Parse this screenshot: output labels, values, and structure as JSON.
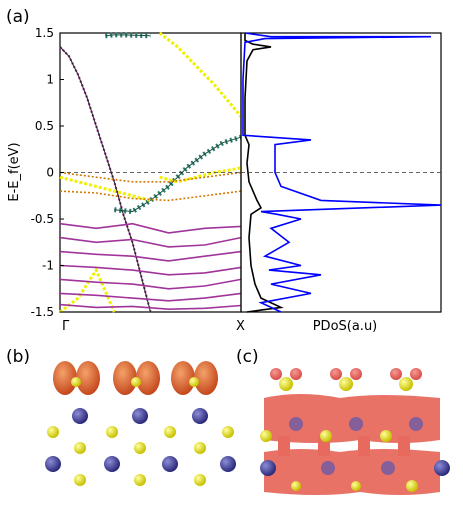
{
  "panel_labels": {
    "a": "(a)",
    "b": "(b)",
    "c": "(c)"
  },
  "chart_data": [
    {
      "type": "line",
      "panel": "(a) band structure",
      "ylabel": "E-E_f(eV)",
      "ylim": [
        -1.5,
        1.5
      ],
      "yticks": [
        "1.5",
        "1",
        "0.5",
        "0",
        "-0.5",
        "-1",
        "-1.5"
      ],
      "xticks": [
        "Γ",
        "X"
      ],
      "fermi_level_line": 0,
      "series": [
        {
          "style": "purple-black",
          "x": [
            0,
            0.05,
            0.1,
            0.15,
            0.2,
            0.25,
            0.3,
            0.35,
            0.4,
            0.5
          ],
          "y": [
            1.35,
            1.25,
            1.05,
            0.8,
            0.5,
            0.2,
            -0.1,
            -0.45,
            -0.75,
            -1.5
          ]
        },
        {
          "style": "teal-green",
          "x": [
            0.3,
            0.4,
            0.5,
            0.6,
            0.7,
            0.8,
            0.9,
            1.0
          ],
          "y": [
            -0.4,
            -0.42,
            -0.3,
            -0.15,
            0.05,
            0.2,
            0.32,
            0.38
          ]
        },
        {
          "style": "teal-green",
          "x": [
            0.25,
            0.3,
            0.35,
            0.5
          ],
          "y": [
            1.47,
            1.48,
            1.48,
            1.47
          ]
        },
        {
          "style": "yellow",
          "x": [
            0.55,
            0.65,
            0.75,
            0.85,
            0.95,
            1.0
          ],
          "y": [
            1.5,
            1.35,
            1.15,
            0.95,
            0.72,
            0.6
          ]
        },
        {
          "style": "yellow",
          "x": [
            0,
            0.1,
            0.2,
            0.3,
            0.4,
            0.5
          ],
          "y": [
            -0.05,
            -0.1,
            -0.15,
            -0.2,
            -0.25,
            -0.3
          ]
        },
        {
          "style": "yellow",
          "x": [
            0.55,
            0.65,
            0.75,
            0.85,
            0.95,
            1.0
          ],
          "y": [
            -0.05,
            -0.1,
            -0.05,
            0.0,
            0.03,
            0.05
          ]
        },
        {
          "style": "yellow",
          "x": [
            0.0,
            0.1,
            0.2,
            0.3
          ],
          "y": [
            -1.5,
            -1.35,
            -1.05,
            -1.5
          ]
        },
        {
          "style": "orange",
          "x": [
            0,
            0.2,
            0.4,
            0.6,
            0.8,
            1.0
          ],
          "y": [
            0.0,
            -0.05,
            -0.1,
            -0.1,
            -0.05,
            0.0
          ]
        },
        {
          "style": "orange",
          "x": [
            0,
            0.2,
            0.4,
            0.6,
            0.8,
            1.0
          ],
          "y": [
            -0.2,
            -0.22,
            -0.28,
            -0.3,
            -0.25,
            -0.2
          ]
        },
        {
          "style": "purple",
          "x": [
            0,
            0.2,
            0.4,
            0.6,
            0.8,
            1.0
          ],
          "y": [
            -0.55,
            -0.6,
            -0.55,
            -0.65,
            -0.6,
            -0.58
          ]
        },
        {
          "style": "purple",
          "x": [
            0,
            0.2,
            0.4,
            0.6,
            0.8,
            1.0
          ],
          "y": [
            -0.7,
            -0.75,
            -0.72,
            -0.8,
            -0.78,
            -0.7
          ]
        },
        {
          "style": "purple",
          "x": [
            0,
            0.2,
            0.4,
            0.6,
            0.8,
            1.0
          ],
          "y": [
            -0.85,
            -0.88,
            -0.9,
            -0.95,
            -0.9,
            -0.85
          ]
        },
        {
          "style": "purple",
          "x": [
            0,
            0.2,
            0.4,
            0.6,
            0.8,
            1.0
          ],
          "y": [
            -1.0,
            -1.02,
            -1.05,
            -1.1,
            -1.08,
            -1.02
          ]
        },
        {
          "style": "purple",
          "x": [
            0,
            0.2,
            0.4,
            0.6,
            0.8,
            1.0
          ],
          "y": [
            -1.15,
            -1.18,
            -1.2,
            -1.25,
            -1.22,
            -1.15
          ]
        },
        {
          "style": "purple",
          "x": [
            0,
            0.2,
            0.4,
            0.6,
            0.8,
            1.0
          ],
          "y": [
            -1.3,
            -1.32,
            -1.35,
            -1.38,
            -1.35,
            -1.3
          ]
        },
        {
          "style": "purple",
          "x": [
            0,
            0.2,
            0.4,
            0.6,
            0.8,
            1.0
          ],
          "y": [
            -1.42,
            -1.45,
            -1.44,
            -1.47,
            -1.46,
            -1.43
          ]
        }
      ]
    },
    {
      "type": "line",
      "panel": "(a) projected density of states",
      "xlabel": "PDoS(a.u)",
      "ylim": [
        -1.5,
        1.5
      ],
      "series": [
        {
          "color": "#000000",
          "x": [
            0.02,
            0.02,
            0.06,
            0.15,
            0.06,
            0.03,
            0.02,
            0.02,
            0.04,
            0.03,
            0.04,
            0.08,
            0.1,
            0.05,
            0.04,
            0.05,
            0.07,
            0.1,
            0.2,
            0.1,
            0.03
          ],
          "y": [
            1.5,
            1.42,
            1.38,
            1.35,
            1.32,
            1.2,
            0.8,
            0.4,
            0.3,
            0.1,
            -0.1,
            -0.3,
            -0.38,
            -0.45,
            -0.7,
            -1.0,
            -1.2,
            -1.35,
            -1.45,
            -1.48,
            -1.5
          ]
        },
        {
          "color": "#0000ff",
          "x": [
            0.02,
            0.15,
            0.95,
            0.12,
            0.02,
            0.01,
            0.01,
            0.35,
            0.17,
            0.17,
            0.2,
            0.4,
            1.0,
            0.1,
            0.18,
            0.3,
            0.15,
            0.24,
            0.12,
            0.3,
            0.14,
            0.4,
            0.15,
            0.35,
            0.1,
            0.2
          ],
          "y": [
            1.5,
            1.46,
            1.46,
            1.44,
            1.4,
            1.0,
            0.4,
            0.35,
            0.3,
            0.0,
            -0.15,
            -0.3,
            -0.35,
            -0.42,
            -0.45,
            -0.5,
            -0.6,
            -0.75,
            -0.9,
            -1.0,
            -1.05,
            -1.1,
            -1.2,
            -1.3,
            -1.4,
            -1.5
          ]
        }
      ]
    }
  ],
  "structures": {
    "b": {
      "view": "isosurface-top",
      "atoms_rows": 3
    },
    "c": {
      "view": "isosurface-side",
      "atoms_rows": 3
    }
  }
}
